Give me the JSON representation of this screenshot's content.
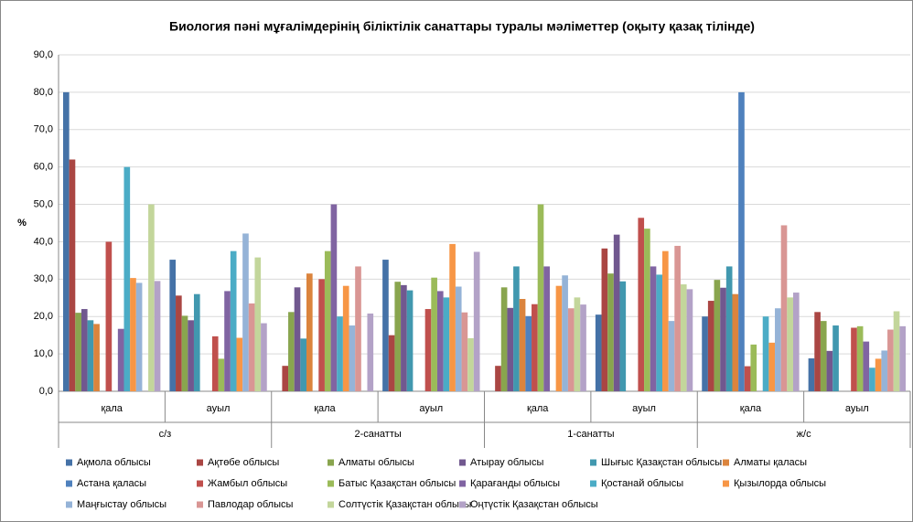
{
  "chart_data": {
    "type": "bar",
    "title": "Биология пәні мұғалімдерінің біліктілік санаттары туралы мәліметтер (оқыту қазақ тілінде)",
    "y_label": "%",
    "categories": [
      "қала",
      "ауыл",
      "қала",
      "ауыл",
      "қала",
      "ауыл",
      "қала",
      "ауыл"
    ],
    "groups": [
      "с/з",
      "2-санатты",
      "1-санатты",
      "ж/с"
    ],
    "ylim": [
      0,
      90
    ],
    "yticks": [
      {
        "value": 0,
        "label": "0,0"
      },
      {
        "value": 10,
        "label": "10,0"
      },
      {
        "value": 20,
        "label": "20,0"
      },
      {
        "value": 30,
        "label": "30,0"
      },
      {
        "value": 40,
        "label": "40,0"
      },
      {
        "value": 50,
        "label": "50,0"
      },
      {
        "value": 60,
        "label": "60,0"
      },
      {
        "value": 70,
        "label": "70,0"
      },
      {
        "value": 80,
        "label": "80,0"
      },
      {
        "value": 90,
        "label": "90,0"
      }
    ],
    "grid": true,
    "legend": "bottom",
    "series": [
      {
        "name": "Ақмола облысы",
        "color": "#4572A7",
        "values": [
          80,
          35.2,
          0,
          35.2,
          0,
          20.5,
          20,
          8.8
        ]
      },
      {
        "name": "Ақтөбе облысы",
        "color": "#AA4643",
        "values": [
          62,
          25.6,
          6.8,
          15,
          6.8,
          38.2,
          24.2,
          21.2
        ]
      },
      {
        "name": "Алматы облысы",
        "color": "#89A54E",
        "values": [
          21,
          20.2,
          21.2,
          29.3,
          27.8,
          31.5,
          29.8,
          18.8
        ]
      },
      {
        "name": "Атырау облысы",
        "color": "#71588F",
        "values": [
          22,
          19,
          27.8,
          28.4,
          22.3,
          41.9,
          27.7,
          10.8
        ]
      },
      {
        "name": "Шығыс Қазақстан облысы",
        "color": "#4198AF",
        "values": [
          19,
          26,
          14.1,
          27,
          33.4,
          29.4,
          33.4,
          17.6
        ]
      },
      {
        "name": "Алматы қаласы",
        "color": "#DB843D",
        "values": [
          18,
          0,
          31.5,
          0,
          24.7,
          0,
          26,
          0
        ]
      },
      {
        "name": "Астана қаласы",
        "color": "#4F81BD",
        "values": [
          0,
          0,
          0,
          0,
          20.1,
          0,
          80,
          0
        ]
      },
      {
        "name": "Жамбыл облысы",
        "color": "#C0504D",
        "values": [
          40,
          14.7,
          30,
          22,
          23.3,
          46.4,
          6.7,
          17
        ]
      },
      {
        "name": "Батыс Қазақстан облысы",
        "color": "#9BBB59",
        "values": [
          0,
          8.7,
          37.5,
          30.4,
          50,
          43.5,
          12.5,
          17.4
        ]
      },
      {
        "name": "Қарағанды облысы",
        "color": "#8064A2",
        "values": [
          16.7,
          26.8,
          50,
          26.8,
          33.4,
          33.4,
          0,
          13.3
        ]
      },
      {
        "name": "Қостанай облысы",
        "color": "#4BACC6",
        "values": [
          60,
          37.5,
          20,
          25.1,
          0,
          31.2,
          20,
          6.3
        ]
      },
      {
        "name": "Қызылорда облысы",
        "color": "#F79646",
        "values": [
          30.3,
          14.3,
          28.2,
          39.4,
          28.2,
          37.5,
          13,
          8.7
        ]
      },
      {
        "name": "Маңғыстау облысы",
        "color": "#95B3D7",
        "values": [
          29,
          42.2,
          17.6,
          28,
          31,
          18.8,
          22.2,
          10.9
        ]
      },
      {
        "name": "Павлодар облысы",
        "color": "#D99694",
        "values": [
          0,
          23.5,
          33.4,
          21.1,
          22.2,
          38.9,
          44.4,
          16.5
        ]
      },
      {
        "name": "Солтүстік Қазақстан облысы",
        "color": "#C3D69B",
        "values": [
          50,
          35.8,
          0,
          14.2,
          25.1,
          28.6,
          25.1,
          21.4
        ]
      },
      {
        "name": "Оңтүстік Қазақстан облысы",
        "color": "#B3A2C7",
        "values": [
          29.5,
          18.2,
          20.8,
          37.3,
          23.2,
          27.3,
          26.4,
          17.4
        ]
      }
    ]
  }
}
